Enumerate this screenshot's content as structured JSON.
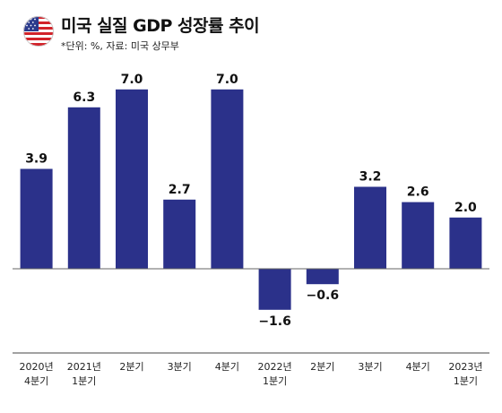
{
  "header": {
    "title": "미국 실질 GDP 성장률 추이",
    "source": "*단위: %, 자료: 미국 상무부",
    "flag_icon": "us-flag-icon"
  },
  "colors": {
    "bar": "#2b318a",
    "axis": "#666666",
    "flag_blue": "#2b3a8c",
    "flag_red": "#d2232a"
  },
  "chart_data": {
    "type": "bar",
    "categories": [
      [
        "2020년",
        "4분기"
      ],
      [
        "2021년",
        "1분기"
      ],
      [
        "2분기"
      ],
      [
        "3분기"
      ],
      [
        "4분기"
      ],
      [
        "2022년",
        "1분기"
      ],
      [
        "2분기"
      ],
      [
        "3분기"
      ],
      [
        "4분기"
      ],
      [
        "2023년",
        "1분기"
      ]
    ],
    "values": [
      3.9,
      6.3,
      7.0,
      2.7,
      7.0,
      -1.6,
      -0.6,
      3.2,
      2.6,
      2.0
    ],
    "value_labels": [
      "3.9",
      "6.3",
      "7.0",
      "2.7",
      "7.0",
      "−1.6",
      "−0.6",
      "3.2",
      "2.6",
      "2.0"
    ],
    "title": "미국 실질 GDP 성장률 추이",
    "xlabel": "",
    "ylabel": "",
    "ylim": [
      -2.2,
      8.0
    ],
    "grid": false,
    "legend": "none"
  }
}
